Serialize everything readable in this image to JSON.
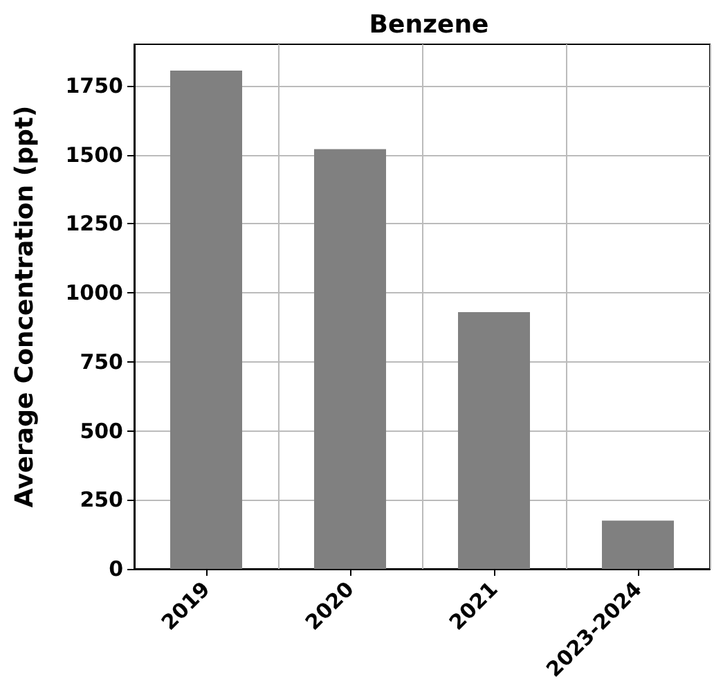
{
  "chart_data": {
    "type": "bar",
    "title": "Benzene",
    "ylabel": "Average Concentration (ppt)",
    "categories": [
      "2019",
      "2020",
      "2021",
      "2023-2024"
    ],
    "values": [
      1805,
      1520,
      930,
      175
    ],
    "color": "#808080",
    "ylim": [
      0,
      1900
    ],
    "yticks": [
      0,
      250,
      500,
      750,
      1000,
      1250,
      1500,
      1750
    ],
    "grid": true
  }
}
